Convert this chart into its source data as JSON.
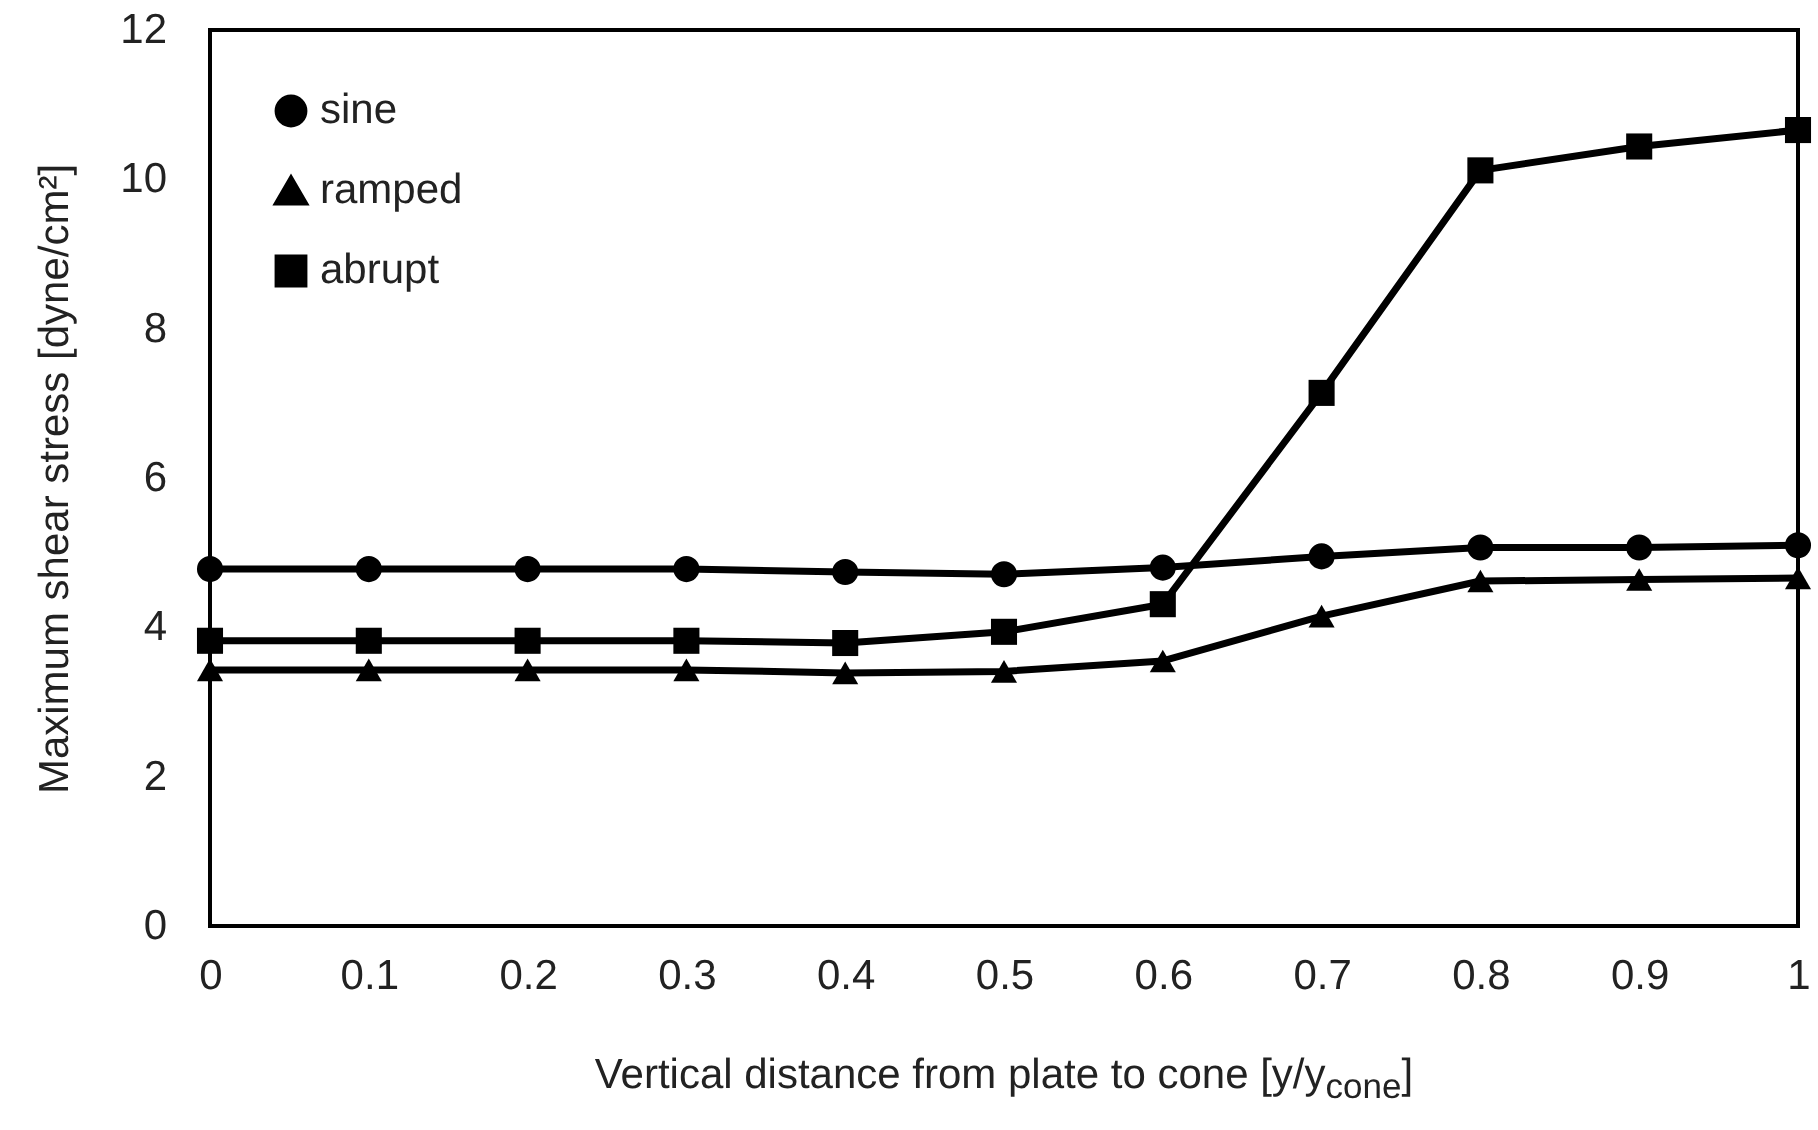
{
  "chart_data": {
    "type": "line",
    "xlabel": "Vertical distance from plate to cone [y/y$_{cone}$]",
    "ylabel": "Maximum shear stress [dyne/cm²]",
    "x": [
      0,
      0.1,
      0.2,
      0.3,
      0.4,
      0.5,
      0.6,
      0.7,
      0.8,
      0.9,
      1
    ],
    "xlim": [
      0,
      1
    ],
    "xticks": [
      0,
      0.1,
      0.2,
      0.3,
      0.4,
      0.5,
      0.6,
      0.7,
      0.8,
      0.9,
      1
    ],
    "ylim": [
      0,
      12
    ],
    "yticks": [
      0,
      2,
      4,
      6,
      8,
      10,
      12
    ],
    "grid": false,
    "legend": "top left",
    "line_style": "solid",
    "series": [
      {
        "name": "sine",
        "color": "#000000",
        "marker": "circle",
        "values": [
          4.78,
          4.78,
          4.78,
          4.78,
          4.74,
          4.71,
          4.8,
          4.95,
          5.07,
          5.07,
          5.1
        ]
      },
      {
        "name": "ramped",
        "color": "#000000",
        "marker": "triangle",
        "values": [
          3.43,
          3.43,
          3.43,
          3.43,
          3.39,
          3.41,
          3.55,
          4.15,
          4.62,
          4.64,
          4.66
        ]
      },
      {
        "name": "abrupt",
        "color": "#000000",
        "marker": "square",
        "values": [
          3.82,
          3.82,
          3.82,
          3.82,
          3.79,
          3.94,
          4.31,
          7.14,
          10.12,
          10.44,
          10.66
        ]
      }
    ]
  }
}
